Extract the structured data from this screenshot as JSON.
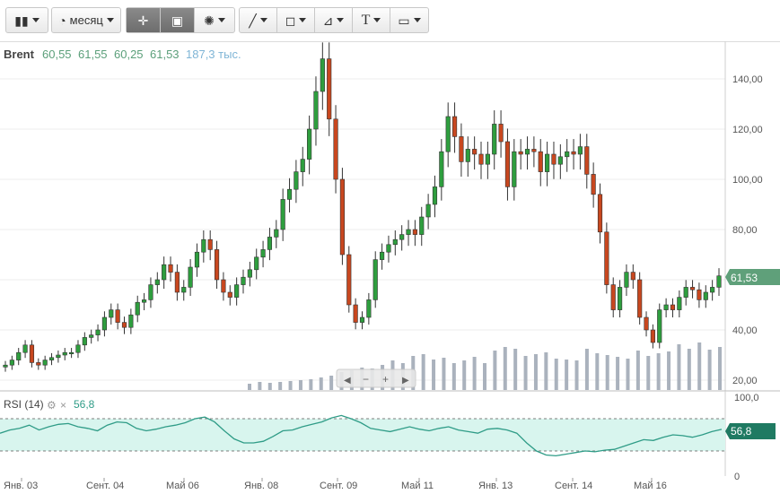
{
  "toolbar": {
    "chart_type_icon": "candlestick-icon",
    "period_label": "месяц",
    "buttons": [
      "crosshair-icon",
      "zoom-icon",
      "indicators-icon",
      "line-tool-icon",
      "shape-tool-icon",
      "fib-tool-icon",
      "text-tool-icon",
      "image-tool-icon"
    ]
  },
  "header": {
    "symbol": "Brent",
    "open": "60,55",
    "high": "61,55",
    "low": "60,25",
    "close": "61,53",
    "volume": "187,3 тыс."
  },
  "rsi": {
    "label": "RSI (14)",
    "value": "56,8",
    "axis": [
      "100,0",
      "0"
    ]
  },
  "price_axis": [
    "140,00",
    "120,00",
    "100,00",
    "80,00",
    "60,00",
    "40,00",
    "20,00"
  ],
  "price_badge": "61,53",
  "x_axis": [
    "Янв. 03",
    "Сент. 04",
    "Май 06",
    "Янв. 08",
    "Сент. 09",
    "Май 11",
    "Янв. 13",
    "Сент. 14",
    "Май 16"
  ],
  "colors": {
    "up": "#2e9e3e",
    "down": "#c8471f",
    "volume": "#aab2bd",
    "rsi_line": "#2f9c87",
    "rsi_band": "#d8f5ee",
    "badge": "#5fa07a"
  },
  "chart_data": [
    {
      "type": "candlestick",
      "title": "Brent",
      "frequency": "monthly",
      "y_range": [
        15,
        150
      ],
      "x_range": [
        "2002-11",
        "2017-06"
      ],
      "x_ticks": [
        "Янв. 03",
        "Сент. 04",
        "Май 06",
        "Янв. 08",
        "Сент. 09",
        "Май 11",
        "Янв. 13",
        "Сент. 14",
        "Май 16"
      ],
      "y_ticks": [
        20,
        40,
        60,
        80,
        100,
        120,
        140
      ],
      "last_close": 61.53,
      "close_series": [
        26,
        28,
        31,
        34,
        27,
        26,
        28,
        29,
        30,
        31,
        31,
        34,
        37,
        38,
        40,
        45,
        48,
        43,
        41,
        46,
        51,
        52,
        58,
        60,
        66,
        63,
        55,
        57,
        65,
        71,
        76,
        72,
        60,
        55,
        53,
        58,
        61,
        64,
        69,
        72,
        77,
        80,
        92,
        96,
        103,
        108,
        120,
        135,
        148,
        124,
        100,
        70,
        50,
        43,
        45,
        52,
        68,
        71,
        74,
        76,
        78,
        80,
        78,
        85,
        90,
        97,
        111,
        125,
        117,
        107,
        112,
        110,
        106,
        110,
        122,
        115,
        97,
        111,
        110,
        112,
        111,
        103,
        110,
        106,
        109,
        111,
        110,
        113,
        102,
        94,
        79,
        58,
        48,
        57,
        63,
        60,
        45,
        40,
        35,
        48,
        50,
        48,
        53,
        57,
        56,
        52,
        55,
        57,
        61.53
      ],
      "volume_series": [
        7,
        9,
        8,
        9,
        10,
        11,
        12,
        14,
        16,
        20,
        22,
        25,
        24,
        28,
        33,
        30,
        38,
        40,
        34,
        36,
        30,
        33,
        37,
        30,
        44,
        48,
        46,
        38,
        40,
        42,
        35,
        34,
        33,
        46,
        41,
        39,
        37,
        35,
        44,
        38,
        41,
        43,
        51,
        46,
        53,
        45,
        48
      ],
      "rsi_series": [
        52,
        56,
        58,
        62,
        56,
        60,
        63,
        64,
        60,
        58,
        55,
        62,
        66,
        65,
        58,
        55,
        57,
        60,
        62,
        65,
        70,
        72,
        66,
        55,
        45,
        40,
        40,
        42,
        48,
        55,
        56,
        60,
        63,
        66,
        71,
        74,
        70,
        65,
        58,
        56,
        54,
        57,
        60,
        57,
        55,
        58,
        60,
        56,
        54,
        52,
        57,
        58,
        56,
        52,
        40,
        30,
        25,
        24,
        26,
        28,
        30,
        29,
        31,
        32,
        36,
        40,
        44,
        43,
        47,
        50,
        49,
        47,
        50,
        54,
        56.8
      ],
      "rsi_levels": [
        70,
        30
      ],
      "rsi_range": [
        0,
        100
      ]
    }
  ]
}
